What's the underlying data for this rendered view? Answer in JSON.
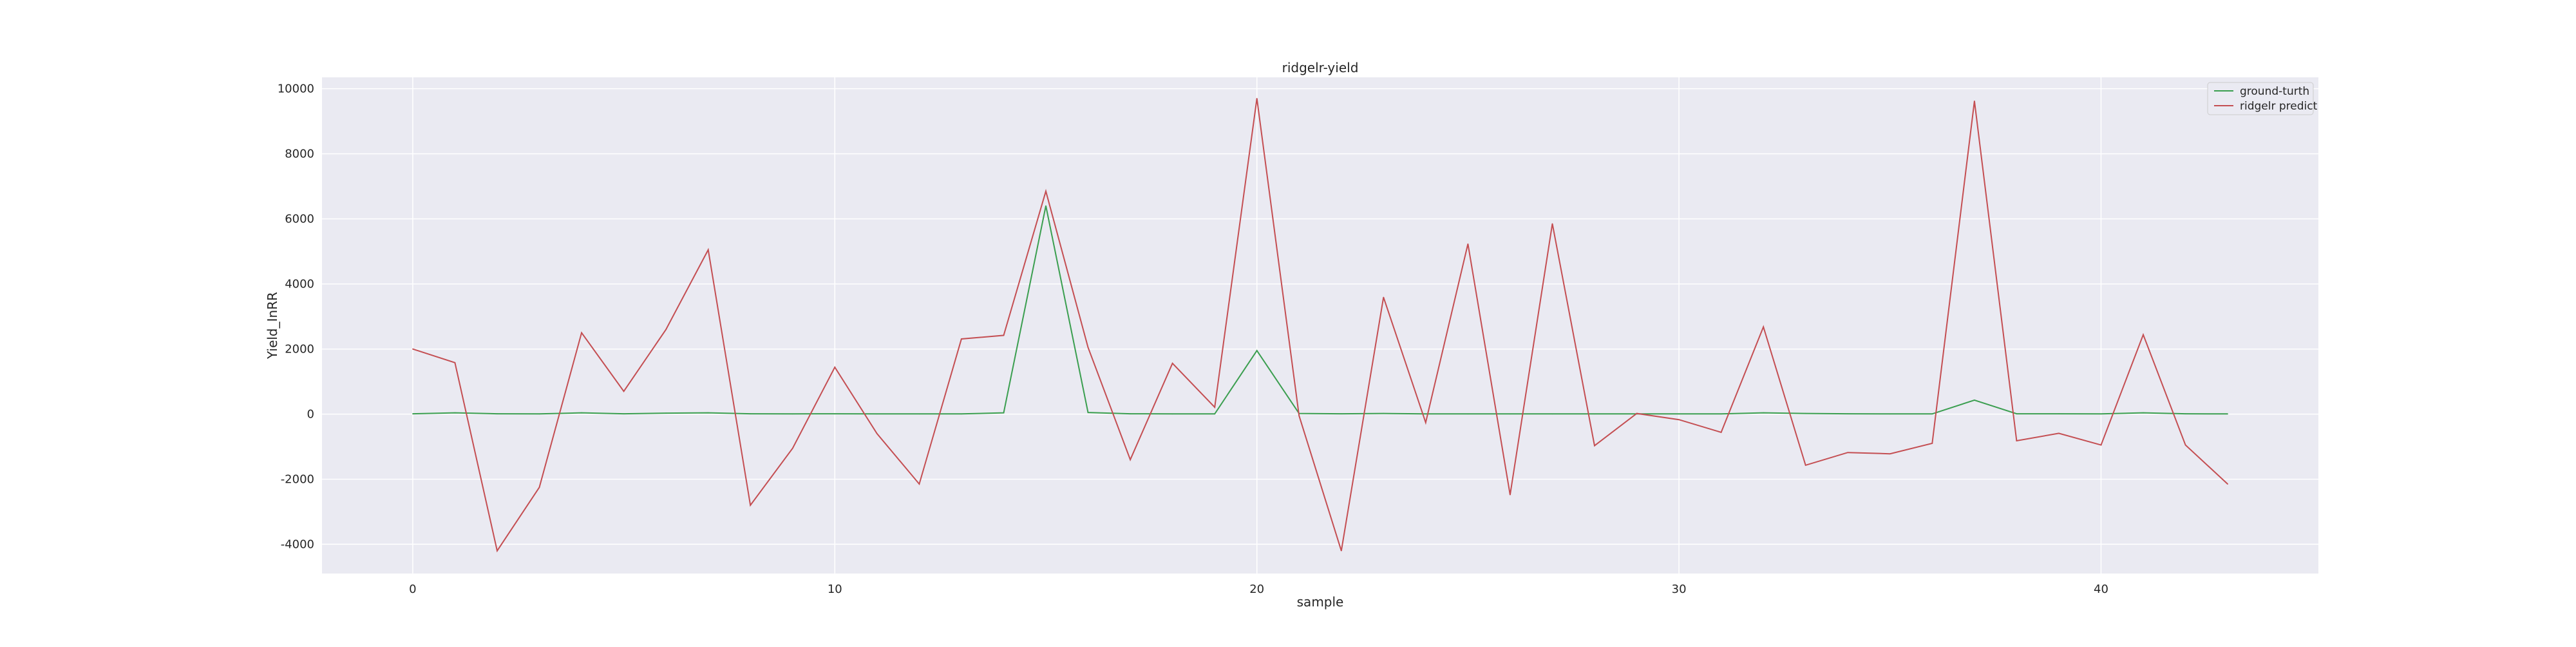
{
  "chart_data": {
    "type": "line",
    "title": "ridgelr-yield",
    "xlabel": "sample",
    "ylabel": "Yield_InRR",
    "xlim": [
      -2.15,
      45.15
    ],
    "ylim": [
      -4900,
      10350
    ],
    "xticks": [
      0,
      10,
      20,
      30,
      40
    ],
    "yticks": [
      -4000,
      -2000,
      0,
      2000,
      4000,
      6000,
      8000,
      10000
    ],
    "grid": true,
    "legend_position": "top-right",
    "x": [
      0,
      1,
      2,
      3,
      4,
      5,
      6,
      7,
      8,
      9,
      10,
      11,
      12,
      13,
      14,
      15,
      16,
      17,
      18,
      19,
      20,
      21,
      22,
      23,
      24,
      25,
      26,
      27,
      28,
      29,
      30,
      31,
      32,
      33,
      34,
      35,
      36,
      37,
      38,
      39,
      40,
      41,
      42,
      43
    ],
    "series": [
      {
        "name": "ground-turth",
        "color": "#3a9e4f",
        "values": [
          10,
          40,
          10,
          5,
          40,
          10,
          30,
          40,
          10,
          5,
          10,
          5,
          5,
          5,
          40,
          6400,
          50,
          10,
          5,
          5,
          1950,
          20,
          10,
          20,
          5,
          5,
          5,
          5,
          5,
          5,
          5,
          5,
          40,
          20,
          10,
          5,
          5,
          430,
          10,
          10,
          5,
          40,
          10,
          5
        ]
      },
      {
        "name": "ridgelr predict",
        "color": "#c44e52",
        "values": [
          2000,
          1580,
          -4200,
          -2250,
          2500,
          700,
          2600,
          5050,
          -2800,
          -1050,
          1440,
          -600,
          -2150,
          2310,
          2420,
          6850,
          2050,
          -1400,
          1560,
          210,
          9700,
          -50,
          -4200,
          3590,
          -260,
          5230,
          -2480,
          5850,
          -970,
          20,
          -170,
          -560,
          2680,
          -1570,
          -1180,
          -1220,
          -900,
          9620,
          -820,
          -590,
          -950,
          2440,
          -950,
          -2150
        ]
      }
    ]
  }
}
